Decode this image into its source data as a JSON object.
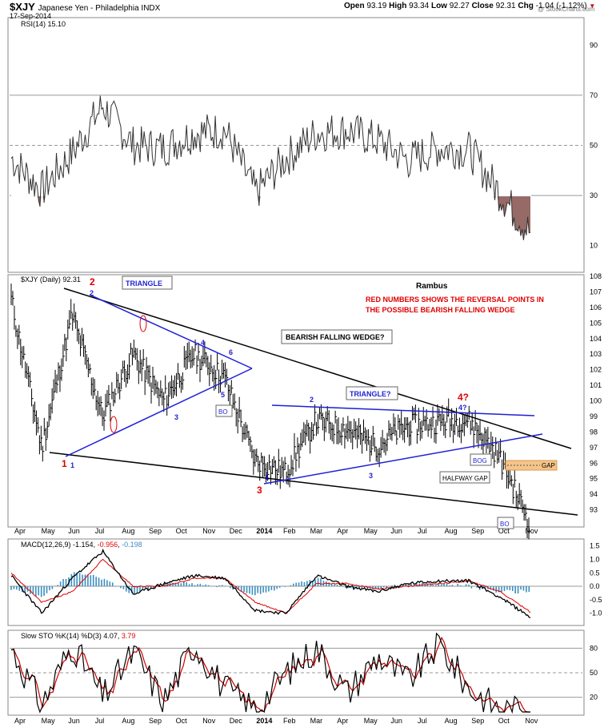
{
  "header": {
    "symbol": "$XJY",
    "name": "Japanese Yen - Philadelphia INDX",
    "date": "17-Sep-2014",
    "credit": "@ StockCharts.com",
    "open_label": "Open",
    "open": "93.19",
    "high_label": "High",
    "high": "93.34",
    "low_label": "Low",
    "low": "92.27",
    "close_label": "Close",
    "close": "92.31",
    "chg_label": "Chg",
    "chg": "-1.04 (-1.12%)"
  },
  "colors": {
    "up": "#000000",
    "down": "#cc0000",
    "blue": "#1f1fd6",
    "red": "#e00000",
    "macd_signal": "#e00000",
    "hist": "#3a8fc0",
    "rsi_fill": "#8b5a55",
    "gap_box": "#f4c48a"
  },
  "chart_data": [
    {
      "type": "line",
      "id": "rsi",
      "label": "RSI(14) 15.10",
      "ylim": [
        0,
        100
      ],
      "yticks": [
        10,
        30,
        50,
        70,
        90
      ],
      "reference_lines": [
        30,
        50,
        70
      ],
      "x": [
        "2013-04",
        "2013-05",
        "2013-06",
        "2013-07",
        "2013-08",
        "2013-09",
        "2013-10",
        "2013-11",
        "2013-12",
        "2014-01",
        "2014-02",
        "2014-03",
        "2014-04",
        "2014-05",
        "2014-06",
        "2014-07",
        "2014-08",
        "2014-09"
      ],
      "series": [
        {
          "values": [
            45,
            32,
            47,
            66,
            50,
            49,
            55,
            56,
            31,
            45,
            55,
            56,
            52,
            44,
            49,
            48,
            31,
            15
          ]
        }
      ]
    },
    {
      "type": "bar",
      "id": "price",
      "label": "$XJY (Daily) 92.31",
      "title": "Rambus",
      "ylim": [
        92,
        108
      ],
      "yticks": [
        93,
        94,
        95,
        96,
        97,
        98,
        99,
        100,
        101,
        102,
        103,
        104,
        105,
        106,
        107,
        108
      ],
      "xticks": [
        "Apr",
        "May",
        "Jun",
        "Jul",
        "Aug",
        "Sep",
        "Oct",
        "Nov",
        "Dec",
        "2014",
        "Feb",
        "Mar",
        "Apr",
        "May",
        "Jun",
        "Jul",
        "Aug",
        "Sep",
        "Oct",
        "Nov"
      ],
      "x": [
        "2013-04",
        "2013-05",
        "2013-06",
        "2013-07",
        "2013-08",
        "2013-09",
        "2013-10",
        "2013-11",
        "2013-12",
        "2014-01",
        "2014-02",
        "2014-03",
        "2014-04",
        "2014-05",
        "2014-06",
        "2014-07",
        "2014-08",
        "2014-09"
      ],
      "series": [
        {
          "values": [
            106.5,
            97.0,
            105.5,
            99.0,
            103.0,
            100.0,
            103.0,
            101.5,
            96.2,
            95.4,
            98.7,
            98.2,
            97.1,
            98.4,
            98.6,
            98.8,
            96.5,
            92.3
          ]
        }
      ],
      "annotations": {
        "triangle": "TRIANGLE",
        "falling_wedge": "BEARISH FALLING WEDGE?",
        "triangle2": "TRIANGLE?",
        "note_line1": "RED NUMBERS SHOWS THE REVERSAL POINTS IN",
        "note_line2": "THE POSSIBLE BEARISH FALLING WEDGE",
        "bo": "BO",
        "bog": "BOG",
        "halfway_gap": "HALFWAY GAP",
        "gap": "GAP",
        "red_1": "1",
        "red_2": "2",
        "red_3": "3",
        "red_4": "4?",
        "blue_1": "1",
        "blue_2": "2",
        "blue_3": "3",
        "blue_4": "4",
        "blue_5": "5",
        "blue_6": "6",
        "blue_4q": "4?"
      }
    },
    {
      "type": "line",
      "id": "macd",
      "label": "MACD(12,26,9)",
      "macd": "-1.154",
      "signal": "-0.956",
      "hist": "-0.198",
      "ylim": [
        -1.4,
        1.7
      ],
      "yticks": [
        -1.0,
        -0.5,
        0.0,
        0.5,
        1.0,
        1.5
      ],
      "x": [
        "2013-04",
        "2013-05",
        "2013-06",
        "2013-07",
        "2013-08",
        "2013-09",
        "2013-10",
        "2013-11",
        "2013-12",
        "2014-01",
        "2014-02",
        "2014-03",
        "2014-04",
        "2014-05",
        "2014-06",
        "2014-07",
        "2014-08",
        "2014-09"
      ],
      "series": [
        {
          "name": "MACD",
          "values": [
            0.4,
            -1.0,
            0.3,
            1.3,
            -0.3,
            0.1,
            0.4,
            0.3,
            -0.9,
            -1.0,
            0.4,
            0.0,
            -0.2,
            0.1,
            0.2,
            0.2,
            -0.4,
            -1.15
          ]
        },
        {
          "name": "Signal",
          "values": [
            0.5,
            -0.6,
            -0.2,
            1.0,
            0.0,
            0.0,
            0.3,
            0.3,
            -0.6,
            -1.0,
            0.1,
            0.1,
            -0.1,
            0.0,
            0.1,
            0.2,
            -0.2,
            -0.96
          ]
        }
      ]
    },
    {
      "type": "line",
      "id": "sto",
      "label": "Slow STO %K(14) %D(3)",
      "k": "4.07",
      "d": "3.79",
      "ylim": [
        0,
        100
      ],
      "yticks": [
        20,
        50,
        80
      ],
      "reference_lines": [
        20,
        50,
        80
      ],
      "x": [
        "2013-04",
        "2013-05",
        "2013-06",
        "2013-07",
        "2013-08",
        "2013-09",
        "2013-10",
        "2013-11",
        "2013-12",
        "2014-01",
        "2014-02",
        "2014-03",
        "2014-04",
        "2014-05",
        "2014-06",
        "2014-07",
        "2014-08",
        "2014-09"
      ],
      "series": [
        {
          "name": "%K",
          "values": [
            80,
            10,
            85,
            20,
            75,
            15,
            85,
            30,
            5,
            50,
            80,
            25,
            70,
            40,
            85,
            30,
            5,
            4
          ]
        },
        {
          "name": "%D",
          "values": [
            75,
            15,
            80,
            25,
            70,
            20,
            80,
            35,
            10,
            45,
            75,
            30,
            65,
            45,
            80,
            35,
            10,
            4
          ]
        }
      ]
    }
  ]
}
